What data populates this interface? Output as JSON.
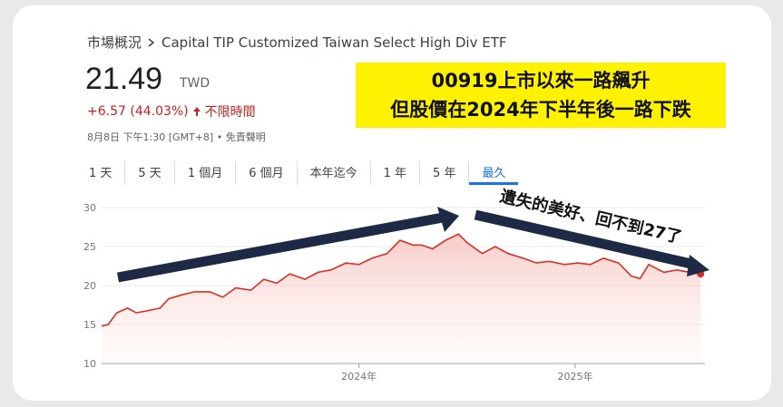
{
  "chart_data": {
    "type": "line",
    "breadcrumb": [
      "市場概況",
      "Capital TIP Customized Taiwan Select High Div ETF"
    ],
    "price": 21.49,
    "currency": "TWD",
    "change": "+6.57 (44.03%)",
    "change_period": "不限時間",
    "timestamp": "8月8日 下午1:30 [GMT+8] • 免責聲明",
    "tabs": [
      "1 天",
      "5 天",
      "1 個月",
      "6 個月",
      "本年迄今",
      "1 年",
      "5 年",
      "最久"
    ],
    "active_tab": 7,
    "annotations": [
      "00919上市以來一路飆升",
      "但股價在2024年下半年後一路下跌",
      "遺失的美好、回不到27了"
    ],
    "x": [
      2022.81,
      2022.84,
      2022.88,
      2022.93,
      2022.97,
      2023.01,
      2023.08,
      2023.12,
      2023.18,
      2023.24,
      2023.31,
      2023.37,
      2023.43,
      2023.5,
      2023.56,
      2023.62,
      2023.68,
      2023.75,
      2023.81,
      2023.87,
      2023.94,
      2024.0,
      2024.06,
      2024.13,
      2024.19,
      2024.25,
      2024.29,
      2024.34,
      2024.4,
      2024.46,
      2024.5,
      2024.57,
      2024.63,
      2024.69,
      2024.76,
      2024.82,
      2024.88,
      2024.95,
      2025.01,
      2025.07,
      2025.13,
      2025.2,
      2025.26,
      2025.3,
      2025.34,
      2025.41,
      2025.47,
      2025.53,
      2025.58
    ],
    "series": [
      {
        "color": "#d93025",
        "values": [
          14.8,
          15.0,
          16.5,
          17.1,
          16.5,
          16.7,
          17.1,
          18.3,
          18.8,
          19.2,
          19.2,
          18.5,
          19.7,
          19.4,
          20.8,
          20.3,
          21.5,
          20.8,
          21.7,
          22.0,
          22.9,
          22.7,
          23.5,
          24.1,
          25.8,
          25.2,
          25.2,
          24.7,
          25.8,
          26.6,
          25.5,
          24.1,
          25.0,
          24.1,
          23.5,
          22.9,
          23.1,
          22.7,
          22.9,
          22.7,
          23.5,
          22.9,
          21.2,
          20.9,
          22.7,
          21.7,
          22.0,
          21.7,
          21.49
        ]
      }
    ],
    "xlim": [
      2022.81,
      2025.6
    ],
    "xticks": [
      {
        "value": 2024,
        "label": "2024年"
      },
      {
        "value": 2025,
        "label": "2025年"
      }
    ],
    "ylim": [
      10,
      30
    ],
    "yticks": [
      10,
      15,
      20,
      25,
      30
    ],
    "grid": true
  }
}
